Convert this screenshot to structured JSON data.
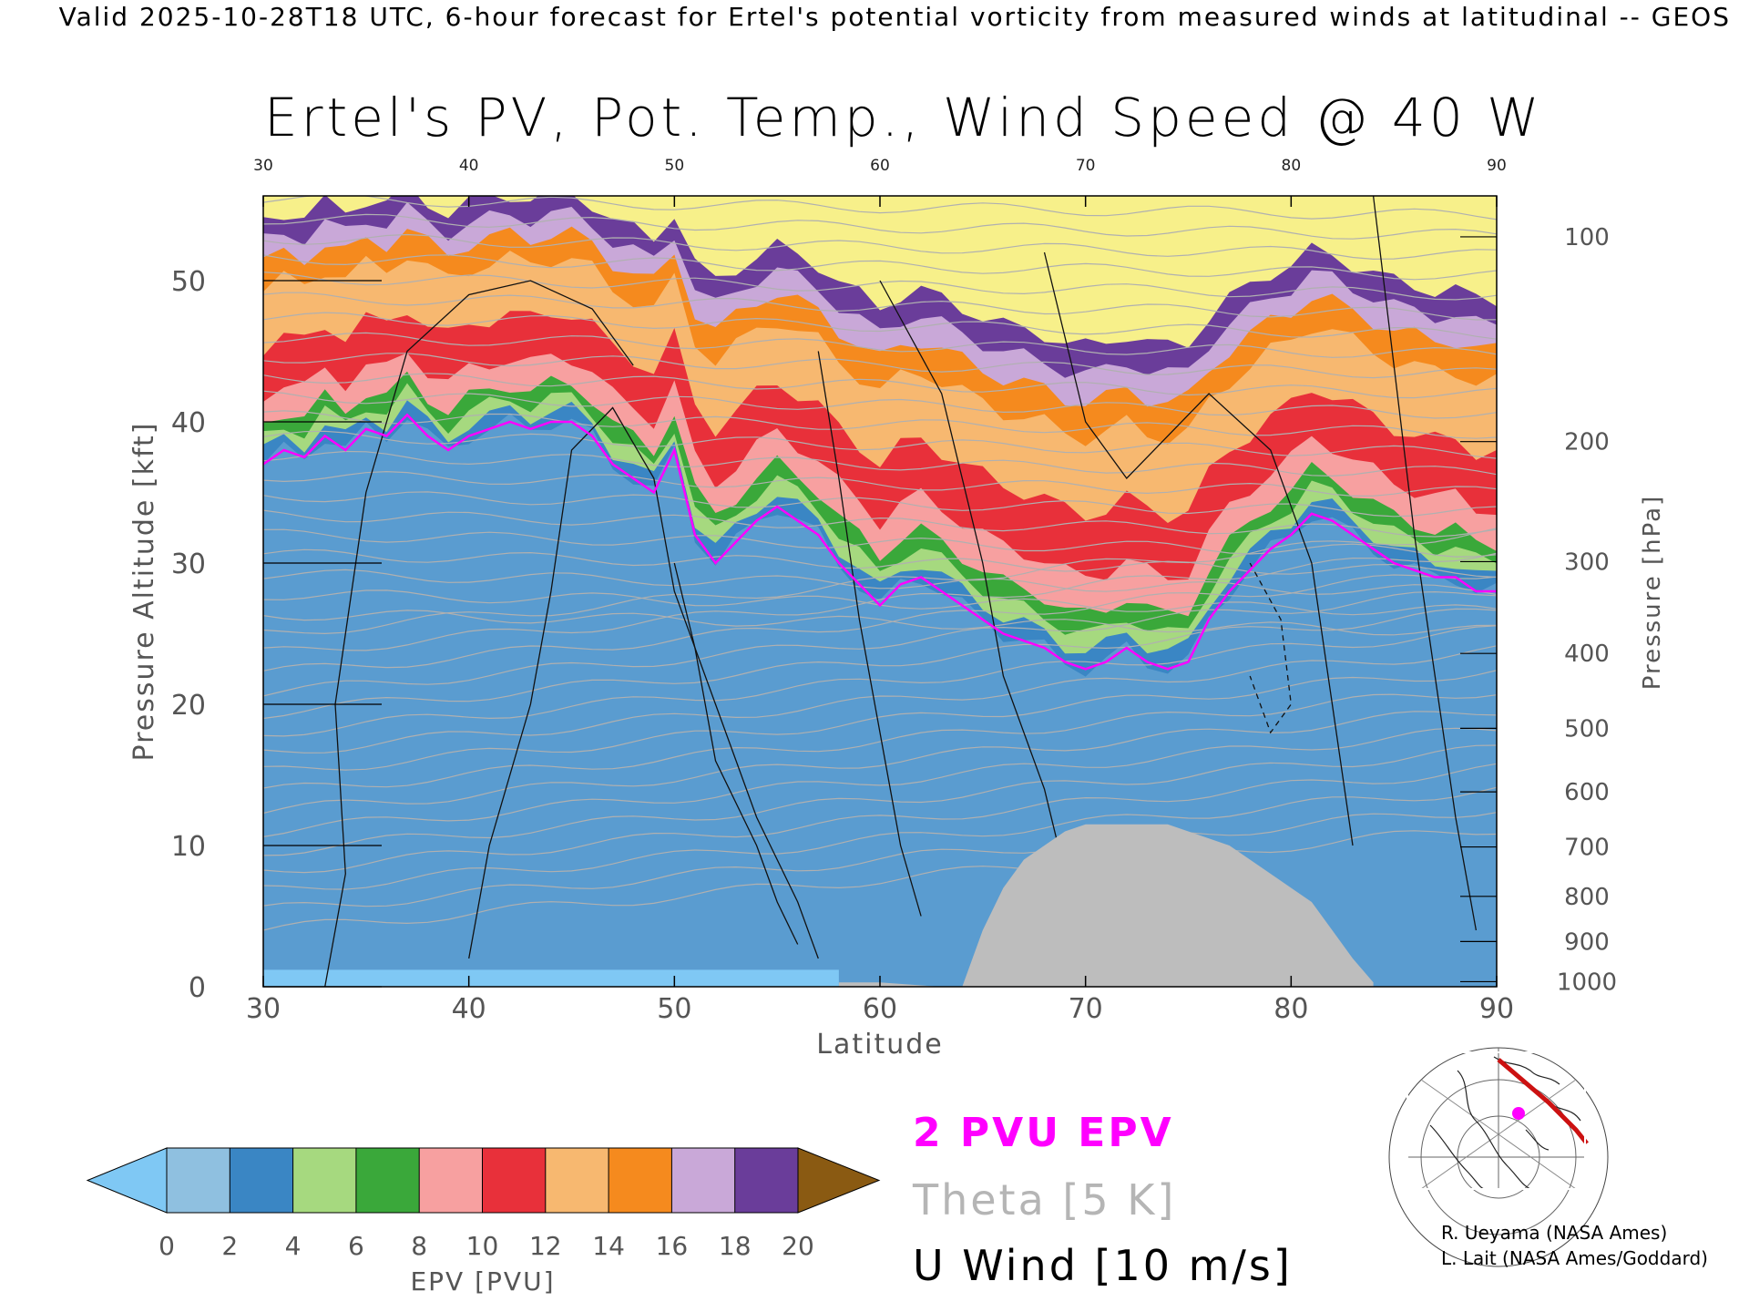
{
  "header": "Valid 2025-10-28T18 UTC, 6-hour forecast for Ertel's potential vorticity from measured winds at latitudinal -- GEOS",
  "chart_data": {
    "type": "heatmap",
    "title": "Ertel's PV, Pot. Temp., Wind Speed @ 40 W",
    "xlabel": "Latitude",
    "ylabel": "Pressure Altitude [kft]",
    "y2label": "Pressure [hPa]",
    "xlim": [
      30,
      90
    ],
    "ylim": [
      0,
      56
    ],
    "x_ticks": [
      30,
      40,
      50,
      60,
      70,
      80,
      90
    ],
    "x_tick_labels": [
      "30",
      "40",
      "50",
      "60",
      "70",
      "80",
      "90"
    ],
    "y_ticks": [
      0,
      10,
      20,
      30,
      40,
      50
    ],
    "y_tick_labels": [
      "0",
      "10",
      "20",
      "30",
      "40",
      "50"
    ],
    "pressure_ticks": [
      {
        "label": "100",
        "alt": 53.1
      },
      {
        "label": "200",
        "alt": 38.6
      },
      {
        "label": "300",
        "alt": 30.1
      },
      {
        "label": "400",
        "alt": 23.6
      },
      {
        "label": "500",
        "alt": 18.3
      },
      {
        "label": "600",
        "alt": 13.8
      },
      {
        "label": "700",
        "alt": 9.9
      },
      {
        "label": "800",
        "alt": 6.4
      },
      {
        "label": "900",
        "alt": 3.2
      },
      {
        "label": "1000",
        "alt": 0.36
      }
    ],
    "tropopause_2pvu": {
      "lat": [
        30,
        31,
        32,
        33,
        34,
        35,
        36,
        37,
        38,
        39,
        40,
        41,
        42,
        43,
        44,
        45,
        46,
        47,
        48,
        49,
        50,
        51,
        52,
        53,
        54,
        55,
        56,
        57,
        58,
        59,
        60,
        61,
        62,
        63,
        64,
        65,
        66,
        67,
        68,
        69,
        70,
        71,
        72,
        73,
        74,
        75,
        76,
        77,
        78,
        79,
        80,
        81,
        82,
        83,
        84,
        85,
        86,
        87,
        88,
        89,
        90
      ],
      "alt_kft": [
        37,
        38,
        37.5,
        39,
        38,
        39.5,
        39,
        40.5,
        39,
        38,
        39,
        39.5,
        40,
        39.5,
        40,
        40,
        39,
        37,
        36,
        35,
        38,
        32,
        30,
        31.5,
        33,
        34,
        33,
        32,
        30,
        28.5,
        27,
        28.5,
        29,
        28,
        27,
        26,
        25,
        24.5,
        24,
        23,
        22.5,
        23,
        24,
        23,
        22.5,
        23,
        26,
        28,
        29.5,
        31,
        32,
        33.5,
        33,
        32,
        31,
        30,
        29.5,
        29,
        29,
        28,
        28
      ]
    },
    "terrain": {
      "lat": [
        58,
        59,
        60,
        61,
        62,
        63,
        64,
        65,
        66,
        67,
        68,
        69,
        70,
        71,
        72,
        73,
        74,
        75,
        76,
        77,
        78,
        79,
        80,
        81,
        82,
        83,
        84
      ],
      "top_kft": [
        0.3,
        0.3,
        0.3,
        0.2,
        0.1,
        0,
        0,
        4,
        7,
        9,
        10,
        11,
        11.5,
        11.5,
        11.5,
        11.5,
        11.5,
        11,
        10.5,
        10,
        9,
        8,
        7,
        6,
        4,
        2,
        0.3
      ]
    },
    "u_wind_contours_ms": [
      0,
      10,
      30
    ],
    "theta_interval_K": 5,
    "colorbar": {
      "label": "EPV [PVU]",
      "ticks": [
        0,
        2,
        4,
        6,
        8,
        10,
        12,
        14,
        16,
        18,
        20
      ],
      "tick_labels": [
        "0",
        "2",
        "4",
        "6",
        "8",
        "10",
        "12",
        "14",
        "16",
        "18",
        "20"
      ],
      "colors": [
        "#8fc0e0",
        "#3a86c4",
        "#a6d97f",
        "#3aa83a",
        "#f7a0a0",
        "#e8303a",
        "#f7b870",
        "#f58a1e",
        "#c9a8d8",
        "#6a3d9a",
        "#f7f08a"
      ],
      "under_color": "#7fc8f4",
      "over_color": "#8a5a12"
    }
  },
  "legend": {
    "pvu": "2 PVU EPV",
    "theta": "Theta [5 K]",
    "uwind": "U Wind [10 m/s]"
  },
  "credits": [
    "R. Ueyama (NASA Ames)",
    "L. Lait (NASA Ames/Goddard)"
  ],
  "colors": {
    "pvu_line": "#ff00ff",
    "terrain": "#bdbdbd",
    "theta": "#b0b0b0",
    "track": "#cc1111"
  }
}
